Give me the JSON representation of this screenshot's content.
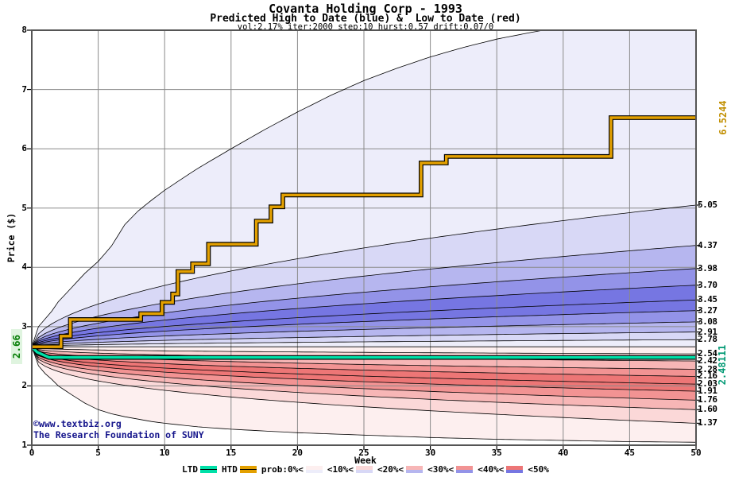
{
  "header": {
    "title": "Covanta Holding Corp - 1993",
    "subtitle": "Predicted High to Date (blue) &  Low to Date (red)",
    "params": "vol:2.17% iter:2000 step:10 hurst:0.57 drift:0.07/0"
  },
  "watermark": {
    "line1": "©www.textbiz.org",
    "line2": "The Research Foundation of SUNY"
  },
  "axes": {
    "y_label": "Price ($)",
    "x_label": "Week"
  },
  "annotations": {
    "start_price": "2.66",
    "htd_final": "6.5244",
    "ltd_final": "2.48111"
  },
  "legend": {
    "items": [
      {
        "label": "LTD",
        "swatch": "line:ltd"
      },
      {
        "label": "HTD",
        "swatch": "line:htd"
      },
      {
        "label": "prob:0%<",
        "swatch": "prob:0"
      },
      {
        "label": "<10%<",
        "swatch": "prob:1"
      },
      {
        "label": "<20%<",
        "swatch": "prob:2"
      },
      {
        "label": "<30%<",
        "swatch": "prob:3"
      },
      {
        "label": "<40%<",
        "swatch": "prob:4"
      },
      {
        "label": "<50%",
        "swatch": ""
      }
    ]
  },
  "chart_data": {
    "type": "area",
    "title": "Covanta Holding Corp - 1993",
    "x": {
      "label": "Week",
      "min": 0,
      "max": 50,
      "tick_step": 5
    },
    "y": {
      "label": "Price ($)",
      "min": 1,
      "max": 8,
      "tick_step": 1
    },
    "start_point": {
      "week": 0,
      "price": 2.66
    },
    "flat_boundary_price": 2.66,
    "high_fan": {
      "exponent": 0.52,
      "quantile_finals": [
        "5.05",
        "4.37",
        "3.98",
        "3.70",
        "3.45",
        "3.27",
        "3.08",
        "2.91",
        "2.78"
      ],
      "envelope": [
        [
          0,
          2.66
        ],
        [
          0.5,
          3.0
        ],
        [
          1,
          3.13
        ],
        [
          1.5,
          3.26
        ],
        [
          2,
          3.42
        ],
        [
          3,
          3.66
        ],
        [
          4,
          3.9
        ],
        [
          5,
          4.1
        ],
        [
          6,
          4.36
        ],
        [
          7,
          4.72
        ],
        [
          8,
          4.95
        ],
        [
          9,
          5.13
        ],
        [
          10,
          5.3
        ],
        [
          11,
          5.45
        ],
        [
          12.5,
          5.67
        ],
        [
          15,
          6.0
        ],
        [
          17.5,
          6.32
        ],
        [
          20,
          6.62
        ],
        [
          22.5,
          6.9
        ],
        [
          25,
          7.15
        ],
        [
          27.5,
          7.36
        ],
        [
          30,
          7.55
        ],
        [
          32.5,
          7.71
        ],
        [
          35,
          7.85
        ],
        [
          37.5,
          7.96
        ],
        [
          40,
          8.06
        ],
        [
          45,
          8.2
        ],
        [
          50,
          8.3
        ]
      ]
    },
    "low_fan": {
      "exponent": 0.35,
      "quantile_finals": [
        "2.54",
        "2.42",
        "2.28",
        "2.16",
        "2.03",
        "1.91",
        "1.76",
        "1.60",
        "1.37"
      ],
      "envelope": [
        [
          0,
          2.66
        ],
        [
          0.5,
          2.34
        ],
        [
          1,
          2.21
        ],
        [
          1.5,
          2.11
        ],
        [
          2,
          2.0
        ],
        [
          3,
          1.85
        ],
        [
          4,
          1.71
        ],
        [
          5,
          1.6
        ],
        [
          6,
          1.53
        ],
        [
          7,
          1.48
        ],
        [
          8,
          1.44
        ],
        [
          9,
          1.4
        ],
        [
          10,
          1.37
        ],
        [
          12.5,
          1.31
        ],
        [
          15,
          1.27
        ],
        [
          17.5,
          1.24
        ],
        [
          20,
          1.21
        ],
        [
          25,
          1.17
        ],
        [
          30,
          1.13
        ],
        [
          35,
          1.1
        ],
        [
          40,
          1.08
        ],
        [
          45,
          1.06
        ],
        [
          50,
          1.05
        ]
      ]
    },
    "htd_steps": [
      [
        0,
        2.66
      ],
      [
        2.2,
        2.84
      ],
      [
        2.9,
        3.12
      ],
      [
        8.2,
        3.22
      ],
      [
        9.8,
        3.41
      ],
      [
        10.6,
        3.55
      ],
      [
        11.0,
        3.93
      ],
      [
        12.1,
        4.06
      ],
      [
        13.3,
        4.39
      ],
      [
        16.9,
        4.78
      ],
      [
        18.0,
        5.02
      ],
      [
        18.9,
        5.22
      ],
      [
        29.3,
        5.76
      ],
      [
        31.2,
        5.87
      ],
      [
        43.6,
        6.5244
      ]
    ],
    "ltd_points": [
      [
        0,
        2.66
      ],
      [
        0.4,
        2.57
      ],
      [
        1.3,
        2.48111
      ],
      [
        50,
        2.48111
      ]
    ],
    "colors": {
      "blue_bands": [
        "#ededfa",
        "#d8d8f6",
        "#b6b6ef",
        "#9393e8",
        "#7676e2"
      ],
      "red_bands": [
        "#fdefef",
        "#fbd8d8",
        "#f7b6b6",
        "#f29393",
        "#ed7676"
      ],
      "htd": "#e3a000",
      "ltd": "#00e0a8",
      "quantile_line": "#000000",
      "grid": "#8a8a8a",
      "border": "#555555"
    }
  }
}
